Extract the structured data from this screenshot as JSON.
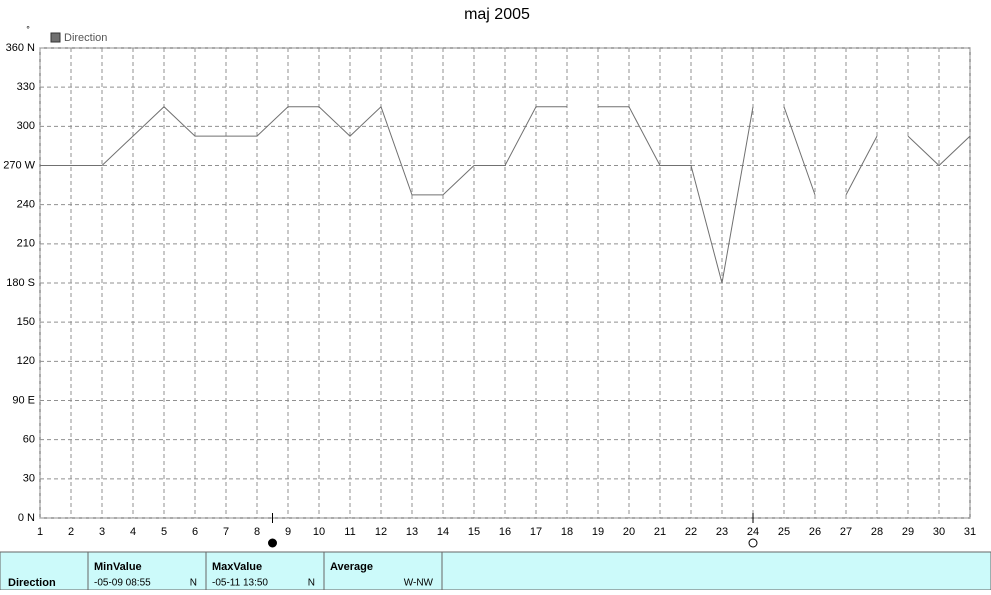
{
  "chart_data": {
    "type": "line",
    "title": "maj 2005",
    "y_label": "°",
    "xlim": [
      1,
      31
    ],
    "xticks": [
      1,
      2,
      3,
      4,
      5,
      6,
      7,
      8,
      9,
      10,
      11,
      12,
      13,
      14,
      15,
      16,
      17,
      18,
      19,
      20,
      21,
      22,
      23,
      24,
      25,
      26,
      27,
      28,
      29,
      30,
      31
    ],
    "ylim": [
      0,
      360
    ],
    "yticks": [
      {
        "value": 0,
        "label": "0 N"
      },
      30,
      60,
      {
        "value": 90,
        "label": "90 E"
      },
      120,
      150,
      {
        "value": 180,
        "label": "180 S"
      },
      210,
      240,
      {
        "value": 270,
        "label": "270 W"
      },
      300,
      330,
      {
        "value": 360,
        "label": "360 N"
      }
    ],
    "grid": true,
    "x": [
      1,
      2,
      3,
      4,
      5,
      6,
      7,
      8,
      9,
      10,
      11,
      12,
      13,
      14,
      15,
      16,
      17,
      18,
      18.5,
      19,
      20,
      21,
      22,
      23,
      24,
      24.5,
      25,
      26,
      26.5,
      27,
      28,
      28.5,
      29,
      30,
      31
    ],
    "series": [
      {
        "name": "Direction",
        "color": "#707070",
        "values": [
          270,
          270,
          270,
          292.5,
          315,
          292.5,
          292.5,
          292.5,
          315,
          315,
          292.5,
          315,
          247.5,
          247.5,
          270,
          270,
          315,
          315,
          null,
          315,
          315,
          270,
          270,
          180,
          315,
          null,
          315,
          247.5,
          null,
          247.5,
          292.5,
          null,
          292.5,
          270,
          292.5
        ]
      }
    ],
    "markers": [
      {
        "x": 8.5,
        "filled": true
      },
      {
        "x": 24,
        "filled": false
      }
    ]
  },
  "summary": {
    "row_label": "Direction",
    "columns": [
      {
        "header": "MinValue",
        "value": "-05-09  08:55",
        "dir": "N"
      },
      {
        "header": "MaxValue",
        "value": "-05-11  13:50",
        "dir": "N"
      },
      {
        "header": "Average",
        "value": "W-NW"
      }
    ]
  }
}
